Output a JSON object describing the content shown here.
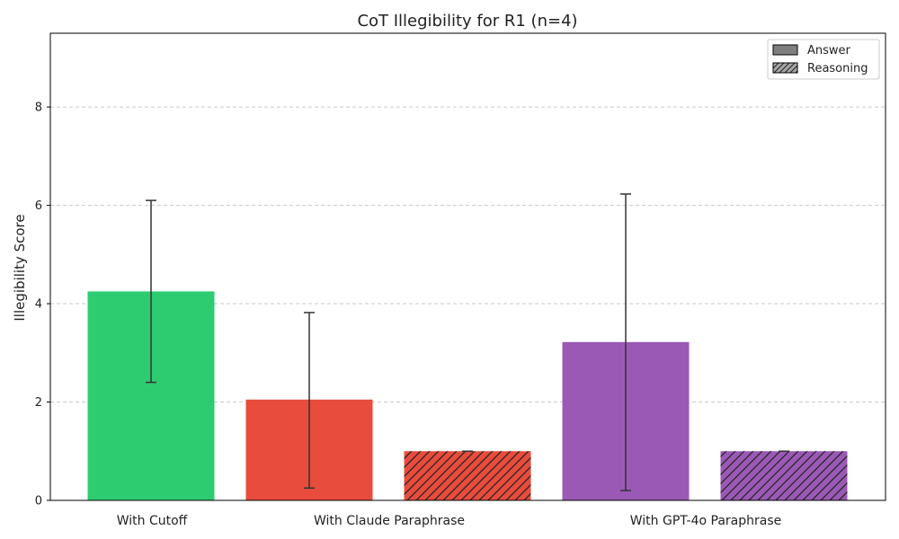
{
  "chart_data": {
    "type": "bar",
    "title": "CoT Illegibility for R1 (n=4)",
    "xlabel": "",
    "ylabel": "Illegibility Score",
    "ylim": [
      0,
      9.5
    ],
    "yticks": [
      "0",
      "2",
      "4",
      "6",
      "8"
    ],
    "grid": true,
    "legend_position": "top-right",
    "legend": [
      {
        "label": "Answer",
        "hatched": false
      },
      {
        "label": "Reasoning",
        "hatched": true
      }
    ],
    "categories": [
      "With Cutoff",
      "With Claude Paraphrase",
      "With GPT-4o Paraphrase"
    ],
    "bars": [
      {
        "category": "With Cutoff",
        "type": "Answer",
        "value": 4.25,
        "err_low": 2.4,
        "err_high": 6.1,
        "color": "#2ecc71"
      },
      {
        "category": "With Claude Paraphrase",
        "type": "Answer",
        "value": 2.05,
        "err_low": 0.25,
        "err_high": 3.82,
        "color": "#e74c3c"
      },
      {
        "category": "With Claude Paraphrase",
        "type": "Reasoning",
        "value": 1.0,
        "err_low": 1.0,
        "err_high": 1.0,
        "color": "#e74c3c"
      },
      {
        "category": "With GPT-4o Paraphrase",
        "type": "Answer",
        "value": 3.22,
        "err_low": 0.2,
        "err_high": 6.23,
        "color": "#9b59b6"
      },
      {
        "category": "With GPT-4o Paraphrase",
        "type": "Reasoning",
        "value": 1.0,
        "err_low": 1.0,
        "err_high": 1.0,
        "color": "#9b59b6"
      }
    ]
  }
}
